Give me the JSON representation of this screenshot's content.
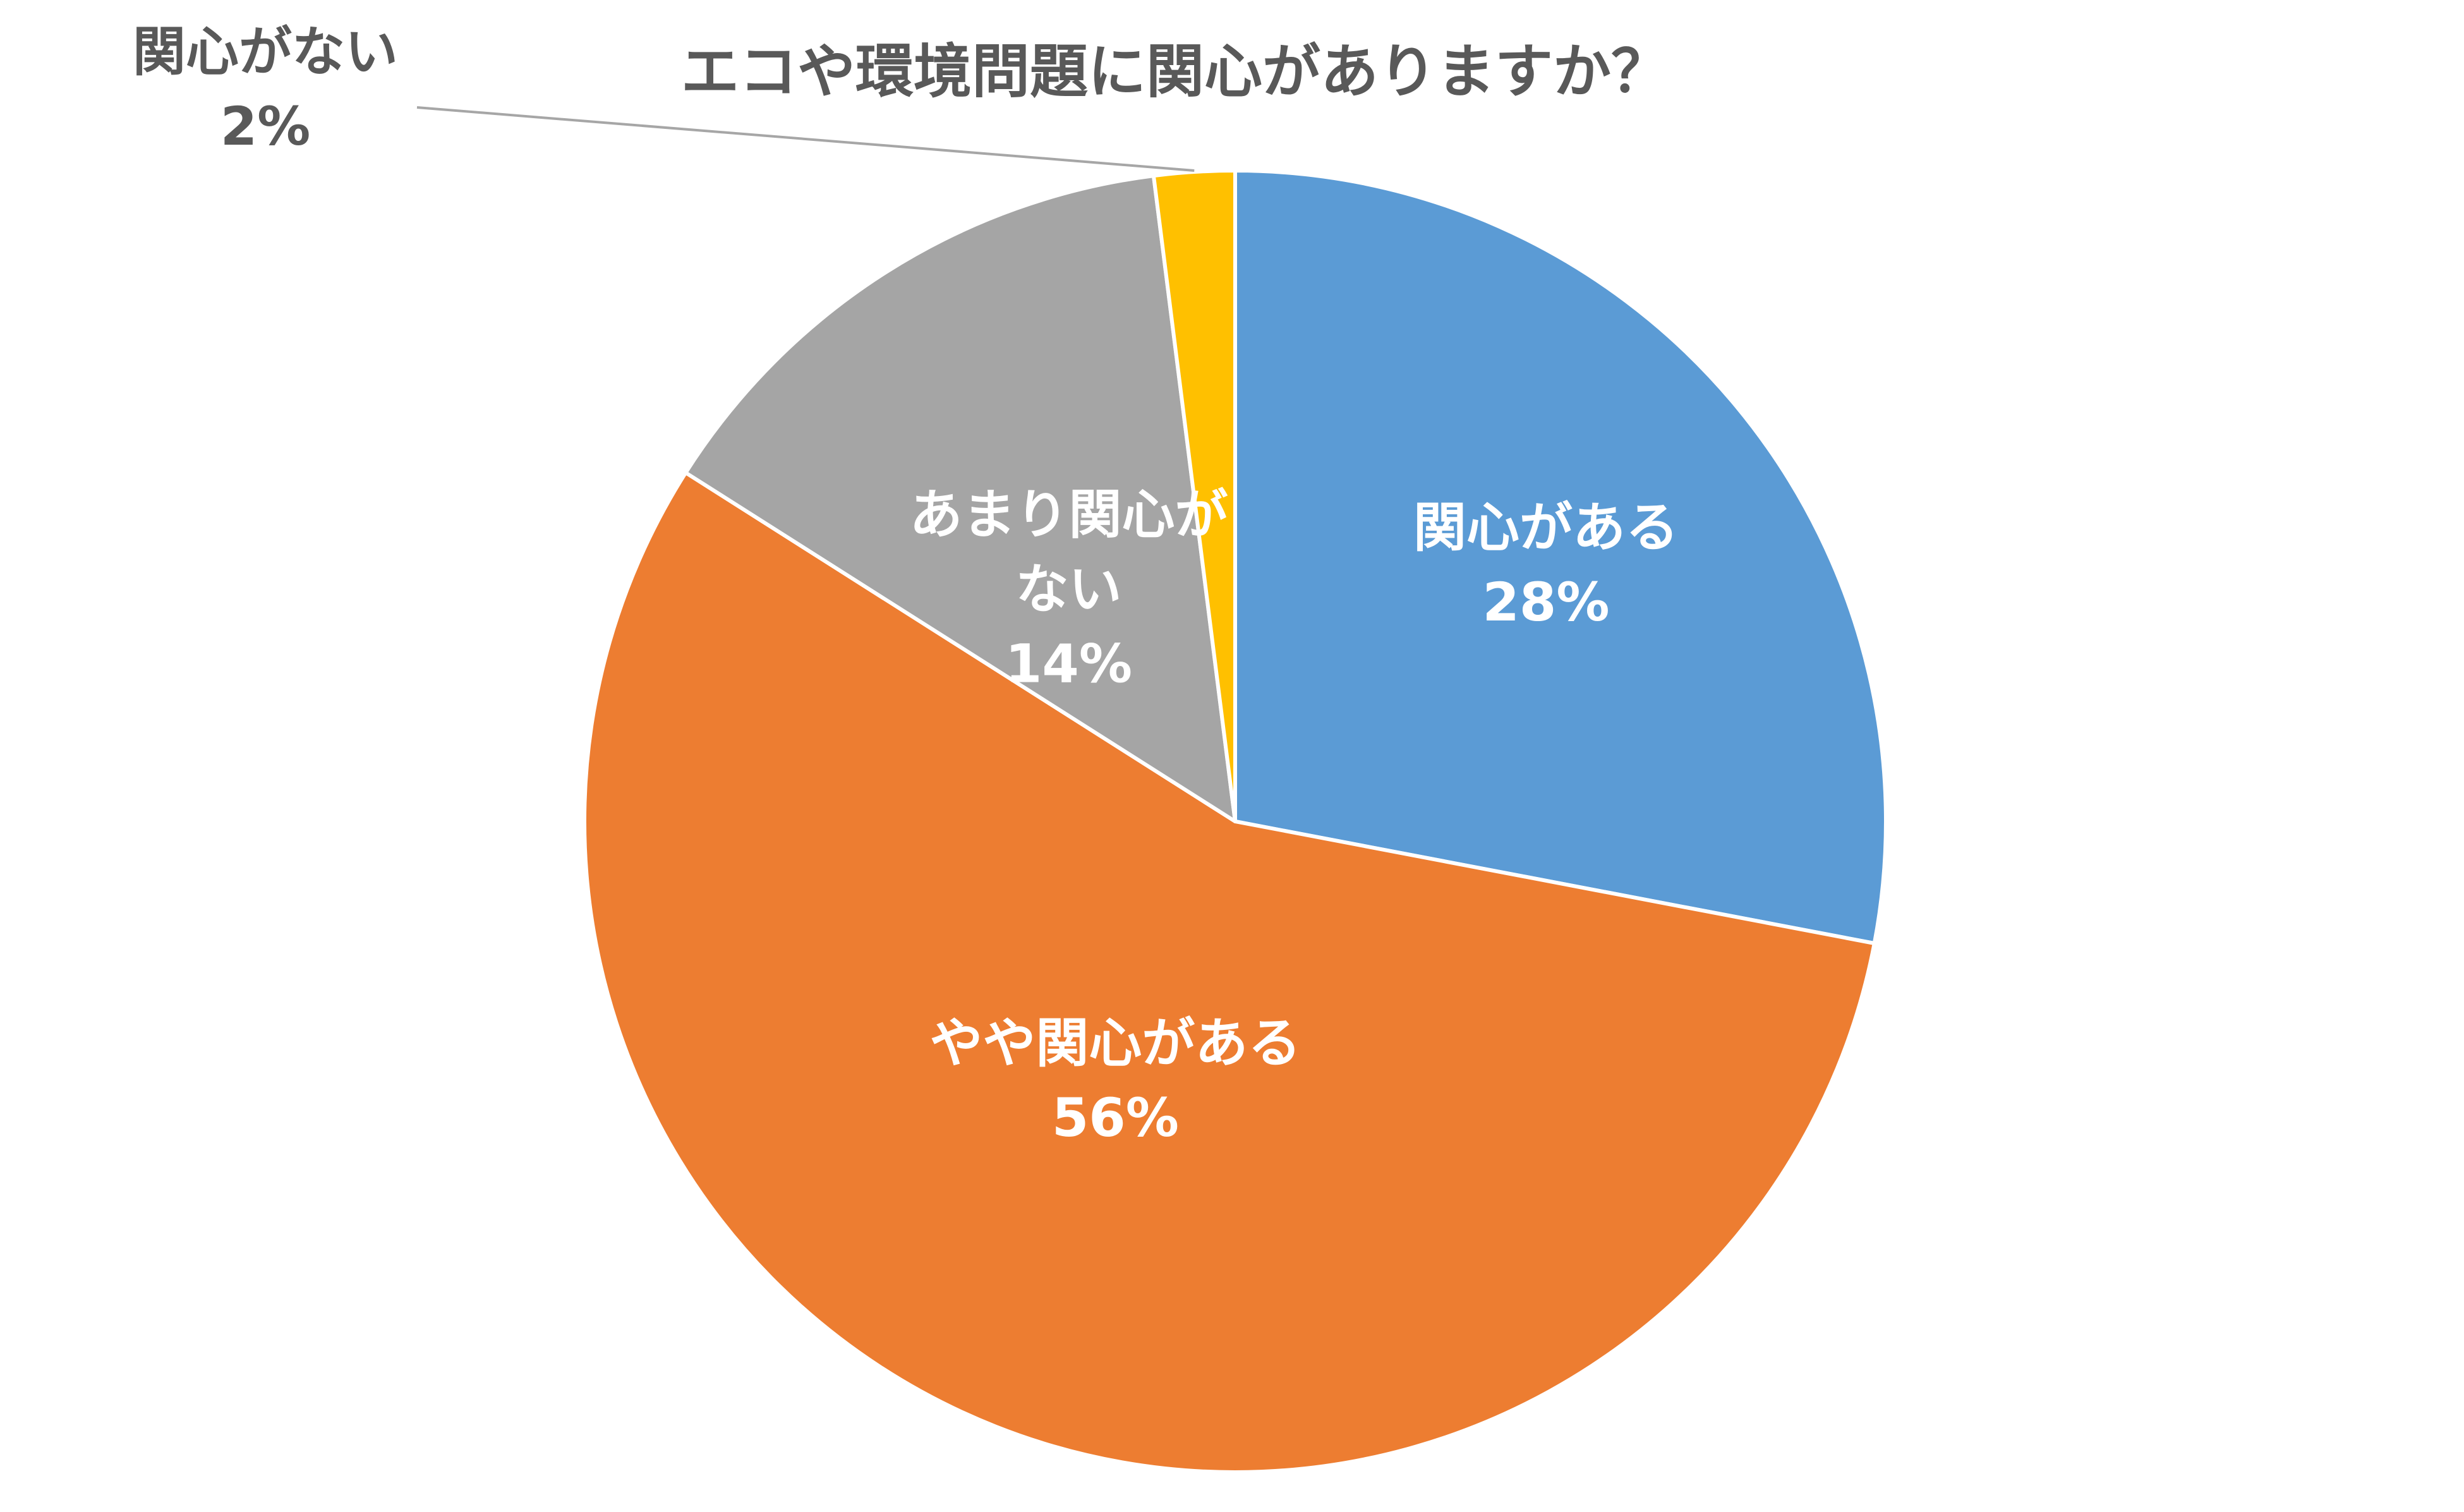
{
  "chart_data": {
    "type": "pie",
    "title": "エコや環境問題に関心がありますか？",
    "start_angle_deg": 0,
    "direction": "clockwise",
    "slices": [
      {
        "label": "関心がある",
        "value": 28,
        "value_label": "28%",
        "color": "#5B9BD5",
        "label_position": "inside",
        "label_lines": [
          "関心がある"
        ]
      },
      {
        "label": "やや関心がある",
        "value": 56,
        "value_label": "56%",
        "color": "#ED7D31",
        "label_position": "inside",
        "label_lines": [
          "やや関心がある"
        ]
      },
      {
        "label": "あまり関心がない",
        "value": 14,
        "value_label": "14%",
        "color": "#A5A5A5",
        "label_position": "inside",
        "label_lines": [
          "あまり関心が",
          "ない"
        ]
      },
      {
        "label": "関心がない",
        "value": 2,
        "value_label": "2%",
        "color": "#FFC000",
        "label_position": "outside",
        "label_lines": [
          "関心がない"
        ]
      }
    ],
    "legend": "none",
    "slice_border_color": "#FFFFFF",
    "leader_line_color": "#A6A6A6"
  }
}
